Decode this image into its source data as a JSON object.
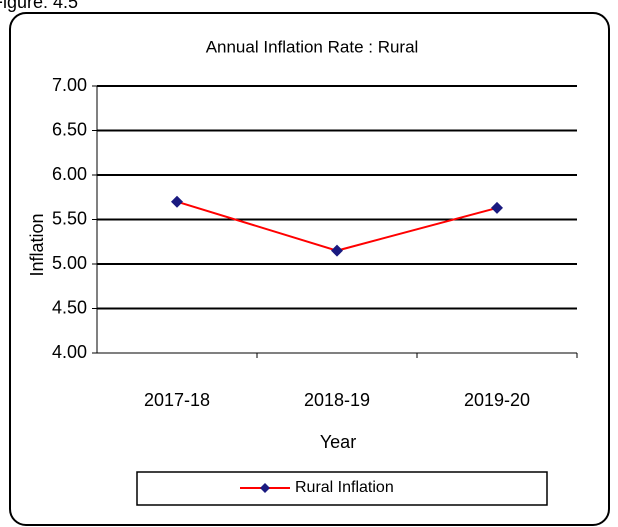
{
  "caption": "Figure: 4.5",
  "chart_data": {
    "type": "line",
    "title": "Annual Inflation Rate :  Rural",
    "x_label": "Year",
    "y_label": "Inflation",
    "categories": [
      "2017-18",
      "2018-19",
      "2019-20"
    ],
    "series": [
      {
        "name": "Rural Inflation",
        "color": "#ff0000",
        "marker_color": "#1a1a80",
        "values": [
          5.7,
          5.15,
          5.63
        ]
      }
    ],
    "ylim": [
      4,
      7
    ],
    "yticks": [
      {
        "value": 4,
        "label": "4.00"
      },
      {
        "value": 4.5,
        "label": "4.50"
      },
      {
        "value": 5,
        "label": "5.00"
      },
      {
        "value": 5.5,
        "label": "5.50"
      },
      {
        "value": 6,
        "label": "6.00"
      },
      {
        "value": 6.5,
        "label": "6.50"
      },
      {
        "value": 7,
        "label": "7.00"
      }
    ],
    "grid": true,
    "legend": "bottom"
  }
}
